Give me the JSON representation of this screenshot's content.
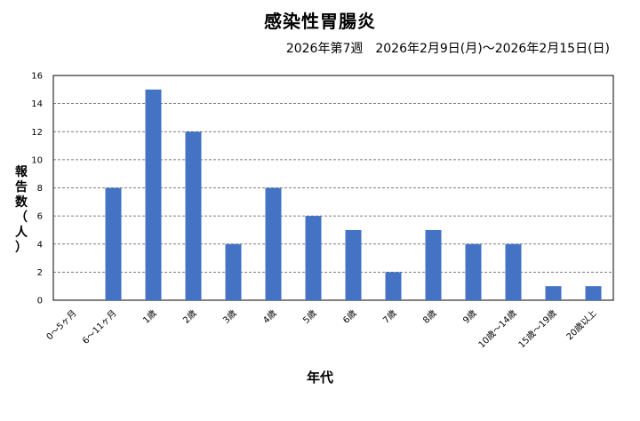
{
  "chart_data": {
    "type": "bar",
    "title": "感染性胃腸炎",
    "subtitle": "2026年第7週　2026年2月9日(月)～2026年2月15日(日)",
    "xlabel": "年代",
    "ylabel": [
      "報",
      "告",
      "数",
      "（",
      "人",
      "）"
    ],
    "categories": [
      "0～5ヶ月",
      "6～11ヶ月",
      "1歳",
      "2歳",
      "3歳",
      "4歳",
      "5歳",
      "6歳",
      "7歳",
      "8歳",
      "9歳",
      "10歳～14歳",
      "15歳～19歳",
      "20歳以上"
    ],
    "values": [
      0,
      8,
      15,
      12,
      4,
      8,
      6,
      5,
      2,
      5,
      4,
      4,
      1,
      1
    ],
    "ylim": [
      0,
      16
    ],
    "yticks": [
      "0",
      "2",
      "4",
      "6",
      "8",
      "10",
      "12",
      "14",
      "16"
    ],
    "grid": true,
    "legend": "none",
    "bar_color": "#4472C4"
  }
}
